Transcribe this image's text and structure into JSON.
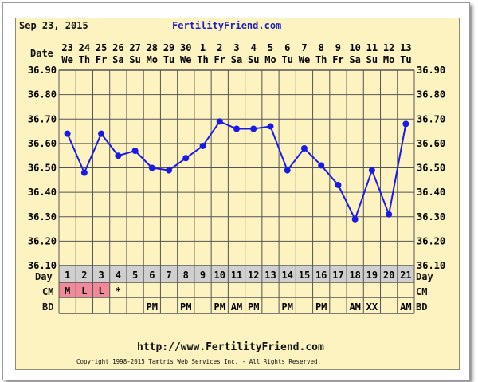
{
  "header": {
    "date": "Sep 23, 2015",
    "site": "FertilityFriend.com"
  },
  "footer": {
    "url": "http://www.FertilityFriend.com",
    "copyright": "Copyright 1998-2015 Tamtris Web Services Inc. - All Rights Reserved."
  },
  "row_labels": {
    "date": "Date",
    "day": "Day",
    "cm": "CM",
    "bd": "BD"
  },
  "colors": {
    "line": "#1a1ae6",
    "grid_bg": "#fdf3c0",
    "day_row": "#cfcfcf",
    "cm_highlight": "#f08a9a",
    "site": "#2020c0"
  },
  "chart_data": {
    "type": "line",
    "ylim": [
      36.1,
      36.9
    ],
    "yticks": [
      "36.90",
      "36.80",
      "36.70",
      "36.60",
      "36.50",
      "36.40",
      "36.30",
      "36.20",
      "36.10"
    ],
    "dates": [
      "23",
      "24",
      "25",
      "26",
      "27",
      "28",
      "29",
      "30",
      "1",
      "2",
      "3",
      "4",
      "5",
      "6",
      "7",
      "8",
      "9",
      "10",
      "11",
      "12",
      "13"
    ],
    "weekdays": [
      "We",
      "Th",
      "Fr",
      "Sa",
      "Su",
      "Mo",
      "Tu",
      "We",
      "Th",
      "Fr",
      "Sa",
      "Su",
      "Mo",
      "Tu",
      "We",
      "Th",
      "Fr",
      "Sa",
      "Su",
      "Mo",
      "Tu"
    ],
    "days": [
      "1",
      "2",
      "3",
      "4",
      "5",
      "6",
      "7",
      "8",
      "9",
      "10",
      "11",
      "12",
      "13",
      "14",
      "15",
      "16",
      "17",
      "18",
      "19",
      "20",
      "21"
    ],
    "values": [
      36.64,
      36.48,
      36.64,
      36.55,
      36.57,
      36.5,
      36.49,
      36.54,
      36.59,
      36.69,
      36.66,
      36.66,
      36.67,
      36.49,
      36.58,
      36.51,
      36.43,
      36.29,
      36.49,
      36.31,
      36.68
    ],
    "cm": [
      "M",
      "L",
      "L",
      "*",
      "",
      "",
      "",
      "",
      "",
      "",
      "",
      "",
      "",
      "",
      "",
      "",
      "",
      "",
      "",
      "",
      ""
    ],
    "bd": [
      "",
      "",
      "",
      "",
      "",
      "PM",
      "",
      "PM",
      "",
      "PM",
      "AM",
      "PM",
      "",
      "PM",
      "",
      "PM",
      "",
      "AM",
      "XX",
      "",
      "AM"
    ],
    "grid": true
  }
}
